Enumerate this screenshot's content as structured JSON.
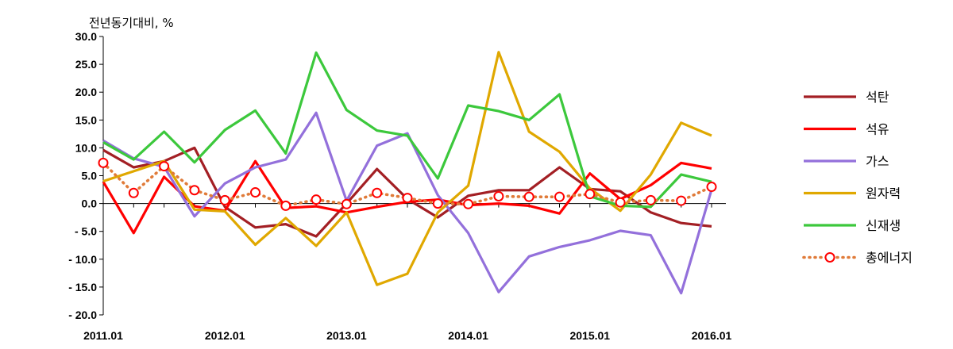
{
  "chart_data": {
    "type": "line",
    "ylabel": "전년동기대비, %",
    "ylim": [
      -20,
      30
    ],
    "yticks": [
      30,
      25,
      20,
      15,
      10,
      5,
      0,
      -5,
      -10,
      -15,
      -20
    ],
    "ytick_labels": [
      "30.0",
      "25.0",
      "20.0",
      "15.0",
      "10.0",
      "5.0",
      "0.0",
      "- 5.0",
      "- 10.0",
      "- 15.0",
      "- 20.0"
    ],
    "x_labels": [
      "2011.01",
      "2012.01",
      "2013.01",
      "2014.01",
      "2015.01",
      "2016.01"
    ],
    "x_label_positions": [
      0,
      4,
      8,
      12,
      16,
      20
    ],
    "x": [
      "2011.01",
      "2011.04",
      "2011.07",
      "2011.10",
      "2012.01",
      "2012.04",
      "2012.07",
      "2012.10",
      "2013.01",
      "2013.04",
      "2013.07",
      "2013.10",
      "2014.01",
      "2014.04",
      "2014.07",
      "2014.10",
      "2015.01",
      "2015.04",
      "2015.07",
      "2015.10",
      "2016.01"
    ],
    "legend_position": "right",
    "series": [
      {
        "name": "석탄",
        "color": "#a31f24",
        "style": "solid",
        "values": [
          9.6,
          6.5,
          7.6,
          10.0,
          -0.6,
          -4.3,
          -3.7,
          -5.9,
          0.0,
          6.2,
          0.8,
          -2.5,
          1.4,
          2.4,
          2.4,
          6.5,
          2.6,
          2.2,
          -1.6,
          -3.5,
          -4.1
        ]
      },
      {
        "name": "석유",
        "color": "#ff0000",
        "style": "solid",
        "values": [
          3.9,
          -5.3,
          4.8,
          -0.5,
          -1.3,
          7.6,
          -0.8,
          -0.5,
          -1.6,
          -0.6,
          0.3,
          0.7,
          -0.3,
          0.0,
          -0.4,
          -1.8,
          5.4,
          0.8,
          3.3,
          7.3,
          6.3
        ]
      },
      {
        "name": "가스",
        "color": "#9370db",
        "style": "solid",
        "values": [
          11.3,
          8.1,
          6.6,
          -2.3,
          3.6,
          6.5,
          7.9,
          16.3,
          0.5,
          10.4,
          12.6,
          1.5,
          -5.3,
          -15.9,
          -9.5,
          -7.8,
          -6.6,
          -4.9,
          -5.7,
          -16.1,
          2.5
        ]
      },
      {
        "name": "원자력",
        "color": "#e0a800",
        "style": "solid",
        "values": [
          4.0,
          5.8,
          7.6,
          -1.1,
          -1.4,
          -7.4,
          -2.6,
          -7.6,
          -1.6,
          -14.6,
          -12.6,
          -1.6,
          3.2,
          27.2,
          12.9,
          9.3,
          2.7,
          -1.3,
          5.2,
          14.5,
          12.2
        ]
      },
      {
        "name": "신재생",
        "color": "#3cc83c",
        "style": "solid",
        "values": [
          11.0,
          7.9,
          12.9,
          7.4,
          13.2,
          16.7,
          9.0,
          27.1,
          16.8,
          13.1,
          12.2,
          4.5,
          17.6,
          16.6,
          15.0,
          19.6,
          1.3,
          -0.4,
          -0.6,
          5.2,
          3.9
        ]
      },
      {
        "name": "총에너지",
        "color": "#e07b39",
        "style": "dotted",
        "marker": "circle",
        "marker_color": "#ff0000",
        "values": [
          7.3,
          1.9,
          6.7,
          2.4,
          0.6,
          2.0,
          -0.4,
          0.7,
          -0.1,
          1.9,
          1.0,
          0.0,
          -0.1,
          1.3,
          1.2,
          1.2,
          1.7,
          0.2,
          0.6,
          0.5,
          3.0
        ]
      }
    ]
  }
}
